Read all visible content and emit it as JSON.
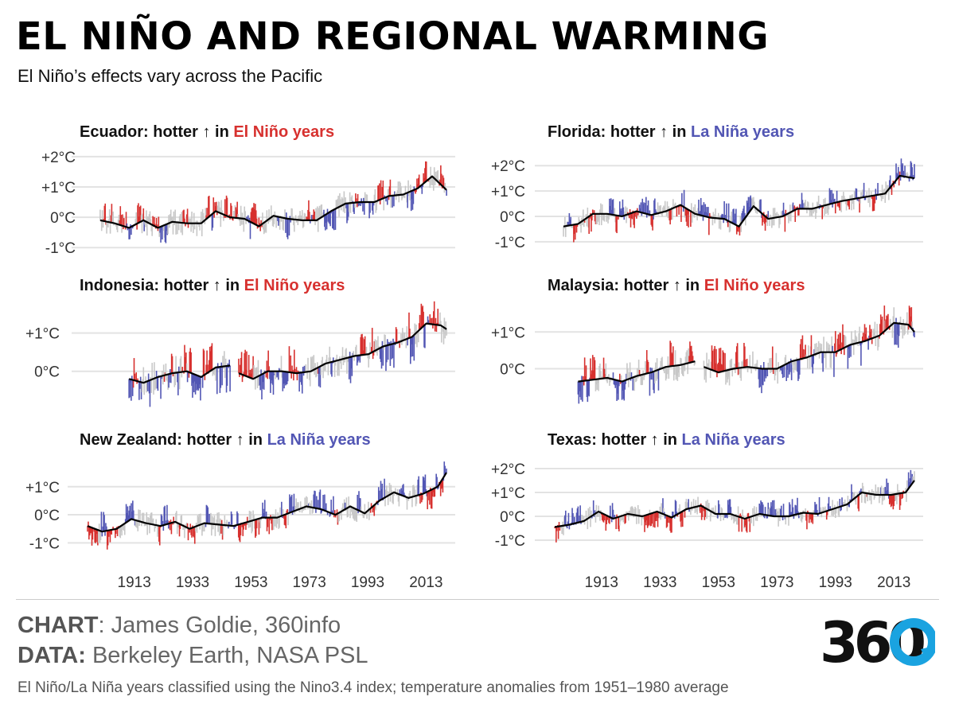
{
  "title": "EL NIÑO AND REGIONAL WARMING",
  "subtitle": "El Niño’s effects vary across the Pacific",
  "credits": {
    "chart_label": "CHART",
    "chart_text": ": James Goldie, 360info",
    "data_label": "DATA:",
    "data_text": " Berkeley Earth, NASA PSL"
  },
  "note": "El Niño/La Niña years classified using the Nino3.4 index; temperature anomalies from 1951–1980 average",
  "logo_text": "360",
  "colors": {
    "el_nino": "#d7312f",
    "la_nina": "#5256b4",
    "neutral": "#c8c8c8",
    "trend": "#000000",
    "grid": "#e3e3e3"
  },
  "chart_data": [
    {
      "type": "line",
      "panel": "Ecuador",
      "title_prefix": "Ecuador: hotter ↑ in ",
      "title_highlight": "El Niño years",
      "highlight_phase": "el_nino",
      "ylim": [
        -1.1,
        2.1
      ],
      "yticks": [
        "+2°C",
        "+1°C",
        "0°C",
        "-1°C"
      ],
      "ytick_values": [
        2,
        1,
        0,
        -1
      ],
      "xlim": [
        1897,
        2023
      ],
      "xticks": [],
      "gaps": [],
      "x": [
        1900,
        1905,
        1910,
        1915,
        1920,
        1925,
        1930,
        1935,
        1940,
        1945,
        1950,
        1955,
        1960,
        1965,
        1970,
        1975,
        1980,
        1985,
        1990,
        1995,
        2000,
        2005,
        2010,
        2015,
        2020
      ],
      "trend": [
        -0.1,
        -0.2,
        -0.35,
        -0.1,
        -0.35,
        -0.15,
        -0.2,
        -0.2,
        0.2,
        0.0,
        -0.05,
        -0.3,
        0.05,
        -0.05,
        -0.1,
        -0.1,
        0.2,
        0.45,
        0.5,
        0.5,
        0.7,
        0.75,
        0.95,
        1.35,
        0.9
      ]
    },
    {
      "type": "line",
      "panel": "Florida",
      "title_prefix": "Florida: hotter ↑ in ",
      "title_highlight": "La Niña years",
      "highlight_phase": "la_nina",
      "ylim": [
        -1.1,
        2.1
      ],
      "yticks": [
        "+2°C",
        "+1°C",
        "0°C",
        "-1°C"
      ],
      "ytick_values": [
        2,
        1,
        0,
        -1
      ],
      "xlim": [
        1897,
        2023
      ],
      "xticks": [],
      "gaps": [],
      "x": [
        1900,
        1905,
        1910,
        1915,
        1920,
        1925,
        1930,
        1935,
        1940,
        1945,
        1950,
        1955,
        1960,
        1965,
        1970,
        1975,
        1980,
        1985,
        1990,
        1995,
        2000,
        2005,
        2010,
        2015,
        2020
      ],
      "trend": [
        -0.4,
        -0.3,
        0.1,
        0.1,
        0.0,
        0.2,
        0.05,
        0.2,
        0.45,
        0.1,
        -0.05,
        -0.1,
        -0.4,
        0.4,
        -0.1,
        0.0,
        0.3,
        0.3,
        0.45,
        0.6,
        0.7,
        0.8,
        0.9,
        1.6,
        1.5
      ]
    },
    {
      "type": "line",
      "panel": "Indonesia",
      "title_prefix": "Indonesia: hotter ↑ in ",
      "title_highlight": "El Niño years",
      "highlight_phase": "el_nino",
      "ylim": [
        -0.9,
        1.7
      ],
      "yticks": [
        "+1°C",
        "0°C"
      ],
      "ytick_values": [
        1,
        0
      ],
      "xlim": [
        1897,
        2023
      ],
      "xticks": [],
      "gaps": [
        [
          1945,
          1948
        ]
      ],
      "x": [
        1910,
        1915,
        1920,
        1925,
        1930,
        1935,
        1940,
        1945,
        1948,
        1953,
        1958,
        1963,
        1968,
        1973,
        1978,
        1983,
        1988,
        1993,
        1998,
        2003,
        2008,
        2013,
        2018,
        2020
      ],
      "trend": [
        -0.2,
        -0.3,
        -0.15,
        -0.05,
        0.0,
        -0.15,
        0.1,
        0.15,
        -0.05,
        -0.2,
        0.0,
        0.0,
        -0.05,
        0.0,
        0.2,
        0.3,
        0.4,
        0.45,
        0.65,
        0.75,
        0.9,
        1.25,
        1.2,
        1.1
      ]
    },
    {
      "type": "line",
      "panel": "Malaysia",
      "title_prefix": "Malaysia: hotter ↑ in ",
      "title_highlight": "El Niño years",
      "highlight_phase": "el_nino",
      "ylim": [
        -0.9,
        1.7
      ],
      "yticks": [
        "+1°C",
        "0°C"
      ],
      "ytick_values": [
        1,
        0
      ],
      "xlim": [
        1897,
        2023
      ],
      "xticks": [],
      "gaps": [
        [
          1945,
          1948
        ]
      ],
      "x": [
        1905,
        1910,
        1915,
        1920,
        1925,
        1930,
        1935,
        1940,
        1945,
        1948,
        1953,
        1958,
        1963,
        1968,
        1973,
        1978,
        1983,
        1988,
        1993,
        1998,
        2003,
        2008,
        2013,
        2018,
        2020
      ],
      "trend": [
        -0.35,
        -0.3,
        -0.25,
        -0.35,
        -0.2,
        -0.1,
        0.05,
        0.1,
        0.2,
        0.05,
        -0.1,
        0.0,
        0.05,
        0.0,
        0.0,
        0.2,
        0.3,
        0.45,
        0.45,
        0.65,
        0.75,
        0.9,
        1.25,
        1.2,
        1.0
      ]
    },
    {
      "type": "line",
      "panel": "New Zealand",
      "title_prefix": "New Zealand: hotter ↑ in ",
      "title_highlight": "La Niña years",
      "highlight_phase": "la_nina",
      "ylim": [
        -1.5,
        1.9
      ],
      "yticks": [
        "+1°C",
        "0°C",
        "-1°C"
      ],
      "ytick_values": [
        1,
        0,
        -1
      ],
      "xlim": [
        1897,
        2023
      ],
      "xticks": [
        "1913",
        "1933",
        "1953",
        "1973",
        "1993",
        "2013"
      ],
      "xtick_values": [
        1913,
        1933,
        1953,
        1973,
        1993,
        2013
      ],
      "gaps": [],
      "x": [
        1897,
        1902,
        1907,
        1912,
        1917,
        1922,
        1927,
        1932,
        1937,
        1942,
        1947,
        1952,
        1957,
        1962,
        1967,
        1972,
        1977,
        1982,
        1987,
        1992,
        1997,
        2002,
        2007,
        2012,
        2017,
        2020
      ],
      "trend": [
        -0.4,
        -0.6,
        -0.5,
        -0.15,
        -0.3,
        -0.4,
        -0.25,
        -0.5,
        -0.3,
        -0.35,
        -0.4,
        -0.25,
        -0.1,
        -0.1,
        0.1,
        0.3,
        0.2,
        0.0,
        0.3,
        0.05,
        0.5,
        0.8,
        0.6,
        0.75,
        1.0,
        1.5
      ]
    },
    {
      "type": "line",
      "panel": "Texas",
      "title_prefix": "Texas: hotter ↑ in ",
      "title_highlight": "La Niña years",
      "highlight_phase": "la_nina",
      "ylim": [
        -1.7,
        2.3
      ],
      "yticks": [
        "+2°C",
        "+1°C",
        "0°C",
        "-1°C"
      ],
      "ytick_values": [
        2,
        1,
        0,
        -1
      ],
      "xlim": [
        1897,
        2023
      ],
      "xticks": [
        "1913",
        "1933",
        "1953",
        "1973",
        "1993",
        "2013"
      ],
      "xtick_values": [
        1913,
        1933,
        1953,
        1973,
        1993,
        2013
      ],
      "gaps": [],
      "x": [
        1897,
        1902,
        1907,
        1912,
        1917,
        1922,
        1927,
        1932,
        1937,
        1942,
        1947,
        1952,
        1957,
        1962,
        1967,
        1972,
        1977,
        1982,
        1987,
        1992,
        1997,
        2002,
        2007,
        2012,
        2017,
        2020
      ],
      "trend": [
        -0.45,
        -0.35,
        -0.2,
        0.2,
        -0.1,
        0.1,
        0.0,
        0.2,
        -0.05,
        0.3,
        0.45,
        0.1,
        0.1,
        -0.1,
        0.1,
        0.0,
        0.0,
        0.15,
        0.1,
        0.3,
        0.5,
        1.0,
        0.9,
        0.9,
        1.0,
        1.5
      ]
    }
  ]
}
